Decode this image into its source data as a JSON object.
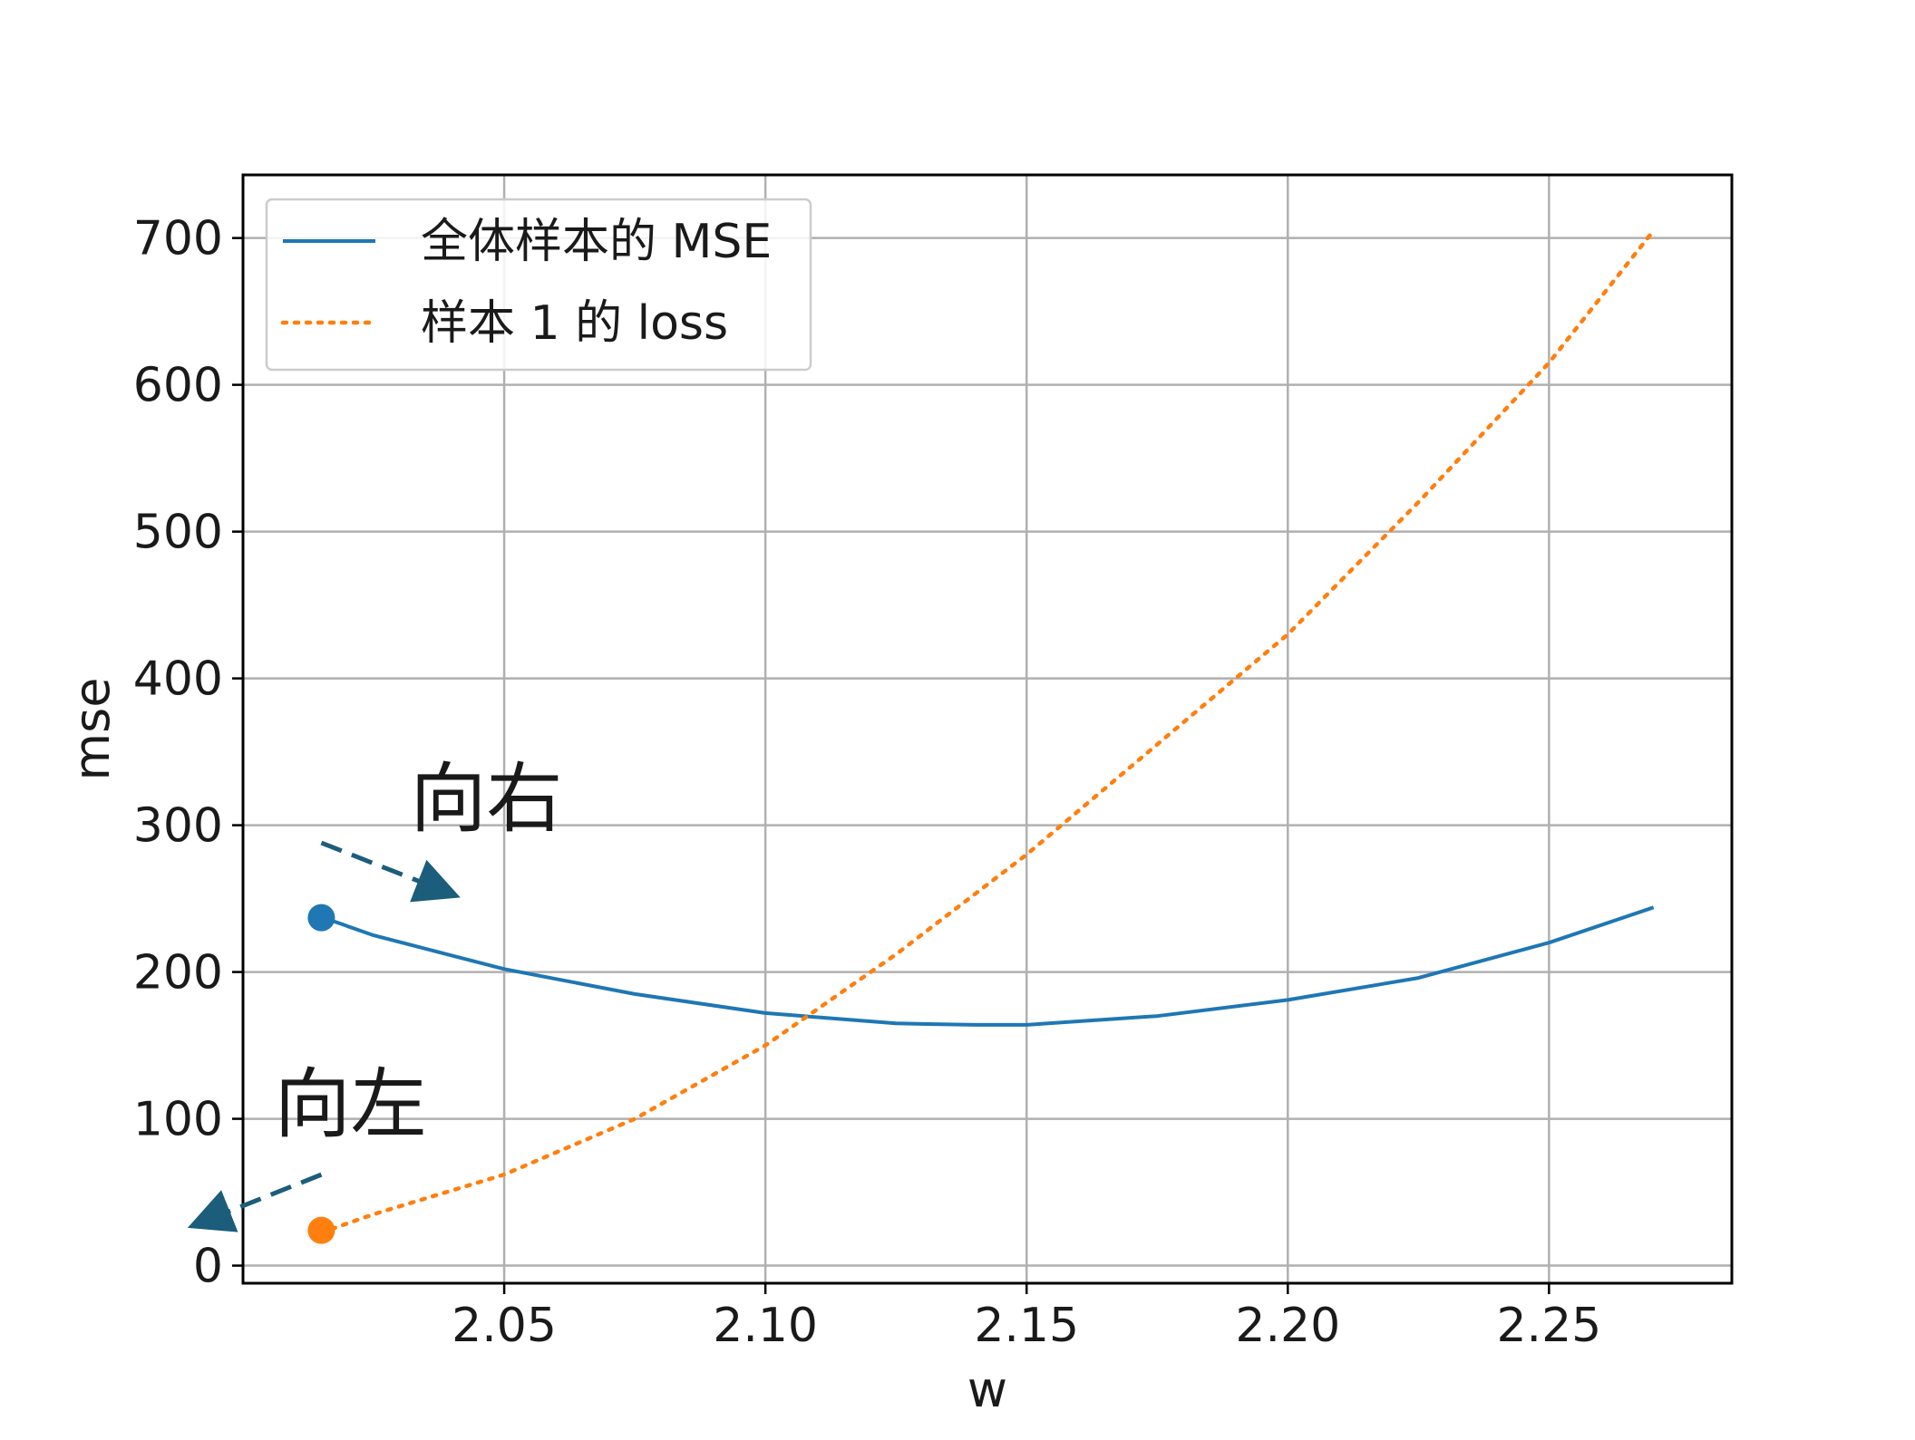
{
  "chart_data": {
    "type": "line",
    "title": "",
    "xlabel": "w",
    "ylabel": "mse",
    "xlim": [
      2.0,
      2.285
    ],
    "ylim": [
      -12,
      743
    ],
    "xticks": [
      2.05,
      2.1,
      2.15,
      2.2,
      2.25
    ],
    "xtick_labels": [
      "2.05",
      "2.10",
      "2.15",
      "2.20",
      "2.25"
    ],
    "yticks": [
      0,
      100,
      200,
      300,
      400,
      500,
      600,
      700
    ],
    "ytick_labels": [
      "0",
      "100",
      "200",
      "300",
      "400",
      "500",
      "600",
      "700"
    ],
    "grid": true,
    "legend_position": "upper-left",
    "series": [
      {
        "name": "全体样本的 MSE",
        "color": "#1f77b4",
        "style": "solid",
        "x": [
          2.013,
          2.025,
          2.05,
          2.075,
          2.1,
          2.125,
          2.14,
          2.15,
          2.175,
          2.2,
          2.225,
          2.25,
          2.27
        ],
        "y": [
          240,
          225,
          202,
          185,
          172,
          165,
          164,
          164,
          170,
          181,
          196,
          220,
          244
        ]
      },
      {
        "name": "样本 1 的 loss",
        "color": "#ff7f0e",
        "style": "dotted",
        "x": [
          2.017,
          2.025,
          2.05,
          2.075,
          2.1,
          2.125,
          2.15,
          2.175,
          2.2,
          2.225,
          2.25,
          2.27
        ],
        "y": [
          25,
          35,
          62,
          100,
          150,
          212,
          280,
          355,
          430,
          520,
          615,
          705
        ]
      }
    ],
    "markers": [
      {
        "series": "全体样本的 MSE",
        "x": 2.015,
        "y": 237,
        "color": "#1f77b4"
      },
      {
        "series": "样本 1 的 loss",
        "x": 2.015,
        "y": 24,
        "color": "#ff7f0e"
      }
    ],
    "annotations": [
      {
        "text": "向右",
        "x": 2.032,
        "y": 300,
        "arrow_from": [
          2.015,
          288
        ],
        "arrow_to": [
          2.04,
          253
        ],
        "arrow_color": "#1b5d7a"
      },
      {
        "text": "向左",
        "x": 2.006,
        "y": 92,
        "arrow_from": [
          2.015,
          62
        ],
        "arrow_to": [
          1.991,
          28
        ],
        "arrow_color": "#1b5d7a"
      }
    ]
  }
}
